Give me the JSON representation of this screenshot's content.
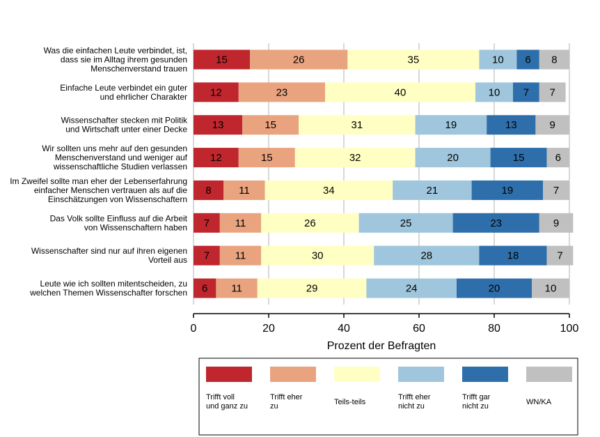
{
  "chart_data": {
    "type": "bar",
    "orientation": "horizontal",
    "stacked": true,
    "xlabel": "Prozent der Befragten",
    "xlim": [
      0,
      100
    ],
    "xticks": [
      0,
      20,
      40,
      60,
      80,
      100
    ],
    "grid": true,
    "legend_position": "bottom",
    "categories": [
      [
        "Was die einfachen Leute verbindet, ist,",
        "dass sie im Alltag ihrem gesunden",
        "Menschenverstand trauen"
      ],
      [
        "Einfache Leute verbindet ein guter",
        "und ehrlicher Charakter"
      ],
      [
        "Wissenschafter stecken mit Politik",
        "und Wirtschaft unter einer Decke"
      ],
      [
        "Wir sollten uns mehr auf den gesunden",
        "Menschenverstand und weniger auf",
        "wissenschaftliche Studien verlassen"
      ],
      [
        "Im Zweifel sollte man eher der Lebenserfahrung",
        "einfacher Menschen vertrauen als auf die",
        "Einschätzungen von Wissenschaftern"
      ],
      [
        "Das Volk sollte Einfluss auf die Arbeit",
        "von Wissenschaftern haben"
      ],
      [
        "Wissenschafter sind nur auf ihren eigenen",
        "Vorteil aus"
      ],
      [
        "Leute wie ich sollten mitentscheiden, zu",
        "welchen Themen Wissenschafter forschen"
      ]
    ],
    "series": [
      {
        "name": [
          "Trifft voll",
          "und ganz zu"
        ],
        "color": "#c0262d",
        "values": [
          15,
          12,
          13,
          12,
          8,
          7,
          7,
          6
        ]
      },
      {
        "name": [
          "Trifft eher",
          "zu"
        ],
        "color": "#e9a47f",
        "values": [
          26,
          23,
          15,
          15,
          11,
          11,
          11,
          11
        ]
      },
      {
        "name": [
          "Teils-teils"
        ],
        "color": "#ffffc4",
        "values": [
          35,
          40,
          31,
          32,
          34,
          26,
          30,
          29
        ]
      },
      {
        "name": [
          "Trifft eher",
          "nicht zu"
        ],
        "color": "#9fc6dc",
        "values": [
          10,
          10,
          19,
          20,
          21,
          25,
          28,
          24
        ]
      },
      {
        "name": [
          "Trifft gar",
          "nicht zu"
        ],
        "color": "#2e6fab",
        "values": [
          6,
          7,
          13,
          15,
          19,
          23,
          18,
          20
        ]
      },
      {
        "name": [
          "WN/KA"
        ],
        "color": "#c0c0c0",
        "values": [
          8,
          7,
          9,
          6,
          7,
          9,
          7,
          10
        ]
      }
    ]
  }
}
